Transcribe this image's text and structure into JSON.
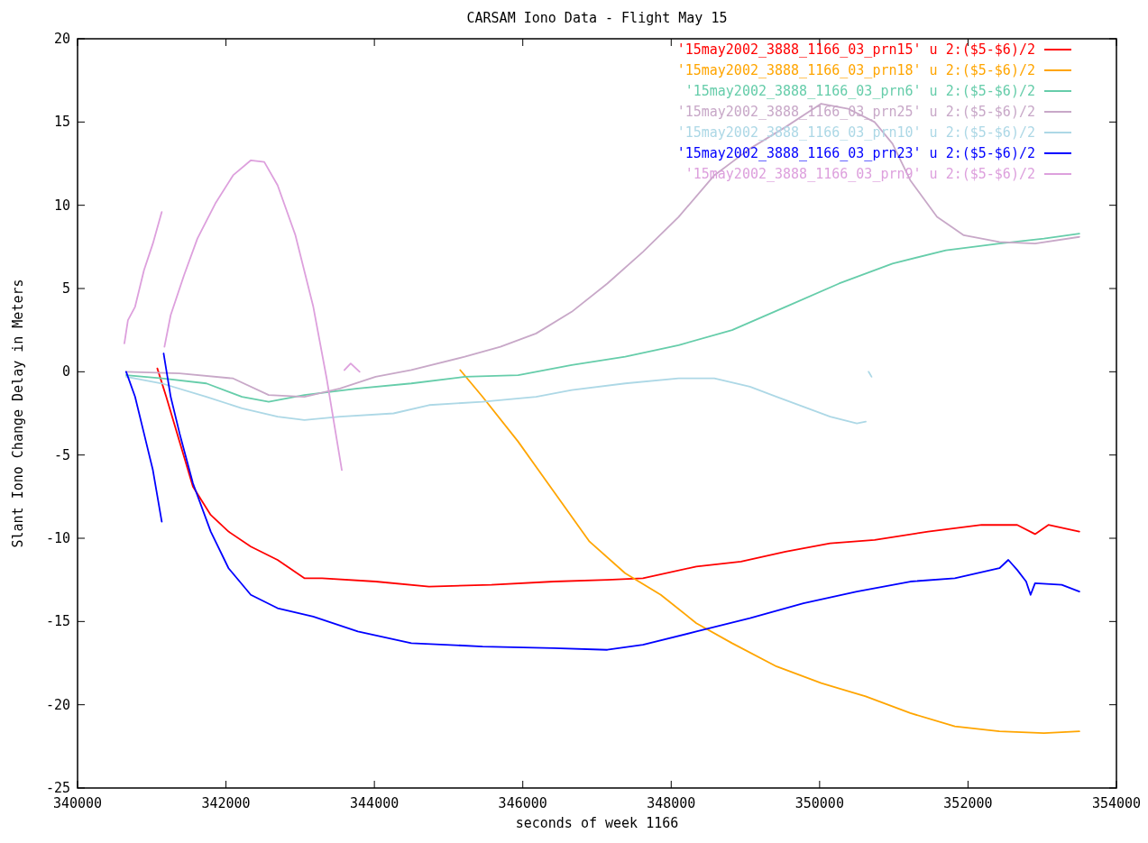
{
  "chart_data": {
    "type": "line",
    "title": "CARSAM Iono Data - Flight May 15",
    "xlabel": "seconds of week 1166",
    "ylabel": "Slant Iono Change Delay in Meters",
    "xlim": [
      340000,
      354000
    ],
    "xticks": [
      340000,
      342000,
      344000,
      346000,
      348000,
      350000,
      352000,
      354000
    ],
    "ylim": [
      -25,
      20
    ],
    "yticks": [
      -25,
      -20,
      -15,
      -10,
      -5,
      0,
      5,
      10,
      15,
      20
    ],
    "grid": false,
    "legend": "top right",
    "line_style": "solid",
    "series": [
      {
        "name": "'15may2002_3888_1166_03_prn15' u 2:($5-$6)/2",
        "color": "#ff0000",
        "x": [
          341075,
          341195,
          341375,
          341555,
          341795,
          342035,
          342335,
          342695,
          343056,
          343296,
          344017,
          344737,
          345578,
          346418,
          347139,
          347619,
          348339,
          348940,
          349540,
          350141,
          350741,
          351462,
          352183,
          352663,
          352903,
          353083,
          353500
        ],
        "values": [
          0.2,
          -1.5,
          -4.2,
          -6.9,
          -8.6,
          -9.6,
          -10.5,
          -11.3,
          -12.4,
          -12.4,
          -12.6,
          -12.9,
          -12.8,
          -12.6,
          -12.5,
          -12.4,
          -11.7,
          -11.4,
          -10.8,
          -10.3,
          -10.1,
          -9.6,
          -9.2,
          -9.2,
          -9.75,
          -9.2,
          -9.6
        ]
      },
      {
        "name": "'15may2002_3888_1166_03_prn18' u 2:($5-$6)/2",
        "color": "#ffa500",
        "x": [
          345157,
          345457,
          345938,
          346418,
          346899,
          347379,
          347860,
          348339,
          348820,
          349420,
          350021,
          350621,
          351222,
          351822,
          352423,
          353023,
          353500
        ],
        "values": [
          0.1,
          -1.5,
          -4.2,
          -7.2,
          -10.2,
          -12.1,
          -13.4,
          -15.1,
          -16.3,
          -17.7,
          -18.7,
          -19.5,
          -20.5,
          -21.3,
          -21.6,
          -21.7,
          -21.6
        ]
      },
      {
        "name": "'15may2002_3888_1166_03_prn6' u 2:($5-$6)/2",
        "color": "#66cdaa",
        "x": [
          340655,
          341135,
          341736,
          342216,
          342576,
          343057,
          343777,
          344498,
          345218,
          345938,
          346659,
          347380,
          348100,
          348820,
          349541,
          350262,
          350982,
          351702,
          352423,
          353023,
          353500
        ],
        "values": [
          -0.2,
          -0.4,
          -0.7,
          -1.5,
          -1.8,
          -1.4,
          -1.0,
          -0.7,
          -0.3,
          -0.2,
          0.4,
          0.9,
          1.6,
          2.5,
          3.9,
          5.3,
          6.5,
          7.3,
          7.7,
          8.0,
          8.3
        ]
      },
      {
        "name": "'15may2002_3888_1166_03_prn25' u 2:($5-$6)/2",
        "color": "#c8a8c8",
        "x": [
          340655,
          341375,
          342096,
          342576,
          343057,
          343537,
          344017,
          344498,
          345218,
          345698,
          346179,
          346659,
          347139,
          347619,
          348100,
          348581,
          349061,
          349541,
          350021,
          350382,
          350741,
          350982,
          351222,
          351582,
          351943,
          352423,
          352903,
          353500
        ],
        "values": [
          0.0,
          -0.1,
          -0.4,
          -1.4,
          -1.5,
          -1.0,
          -0.3,
          0.1,
          0.9,
          1.5,
          2.3,
          3.6,
          5.3,
          7.2,
          9.3,
          11.8,
          13.4,
          14.7,
          16.1,
          15.8,
          15.0,
          13.7,
          11.5,
          9.3,
          8.2,
          7.8,
          7.7,
          8.1
        ]
      },
      {
        "name": "'15may2002_3888_1166_03_prn10' u 2:($5-$6)/2",
        "color": "#add8e6",
        "x": [
          340655,
          341135,
          341736,
          342216,
          342696,
          343057,
          343537,
          344258,
          344738,
          345458,
          346179,
          346659,
          347380,
          348100,
          348581,
          349061,
          349421,
          349782,
          350142,
          350502,
          350622,
          350640,
          350660,
          350700
        ],
        "values": [
          -0.3,
          -0.7,
          -1.5,
          -2.2,
          -2.7,
          -2.9,
          -2.7,
          -2.5,
          -2.0,
          -1.8,
          -1.5,
          -1.1,
          -0.7,
          -0.4,
          -0.4,
          -0.9,
          -1.5,
          -2.1,
          -2.7,
          -3.1,
          -3.0,
          null,
          0.0,
          -0.3
        ]
      },
      {
        "name": "'15may2002_3888_1166_03_prn23' u 2:($5-$6)/2",
        "color": "#0000ff",
        "x": [
          340655,
          340775,
          340895,
          341015,
          341135,
          341148,
          341160,
          341255,
          341375,
          341555,
          341795,
          342035,
          342335,
          342695,
          343176,
          343777,
          344498,
          345458,
          346418,
          347139,
          347619,
          348339,
          349061,
          349782,
          350502,
          351222,
          351822,
          352423,
          352543,
          352663,
          352783,
          352843,
          352903,
          353263,
          353500
        ],
        "values": [
          0.0,
          -1.5,
          -3.7,
          -5.9,
          -9.0,
          null,
          1.1,
          -1.5,
          -3.7,
          -6.7,
          -9.6,
          -11.8,
          -13.4,
          -14.2,
          -14.7,
          -15.6,
          -16.3,
          -16.5,
          -16.6,
          -16.7,
          -16.4,
          -15.6,
          -14.8,
          -13.9,
          -13.2,
          -12.6,
          -12.4,
          -11.8,
          -11.3,
          -11.9,
          -12.6,
          -13.4,
          -12.7,
          -12.8,
          -13.2
        ]
      },
      {
        "name": "'15may2002_3888_1166_03_prn9' u 2:($5-$6)/2",
        "color": "#dda0dd",
        "x": [
          340631,
          340679,
          340775,
          340895,
          341015,
          341135,
          341150,
          341171,
          341255,
          341435,
          341615,
          341856,
          342096,
          342336,
          342516,
          342696,
          342936,
          343177,
          343357,
          343561,
          343580,
          343597,
          343681,
          343801
        ],
        "values": [
          1.7,
          3.1,
          3.9,
          6.1,
          7.7,
          9.6,
          null,
          1.5,
          3.4,
          5.8,
          8.0,
          10.1,
          11.8,
          12.7,
          12.6,
          11.2,
          8.2,
          3.9,
          -0.4,
          -5.9,
          null,
          0.1,
          0.5,
          0.0
        ]
      }
    ]
  }
}
